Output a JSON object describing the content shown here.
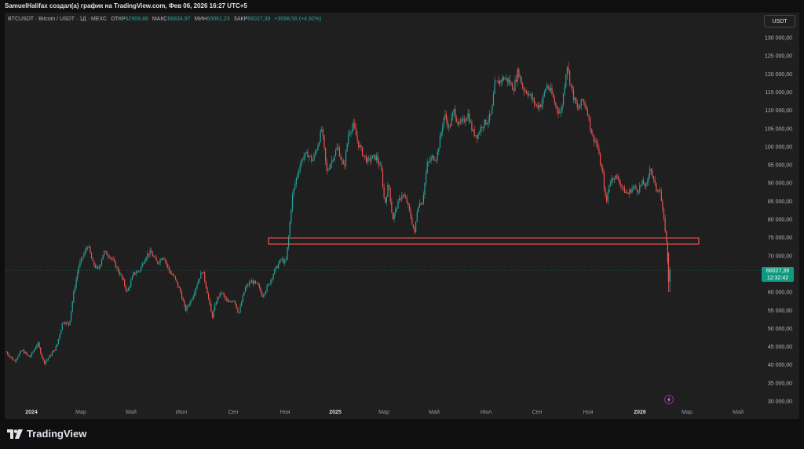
{
  "author_line": "SamuelHalifax создал(а) график на TradingView.com, Фев 06, 2026 16:27 UTC+5",
  "legend": {
    "symbol": "BTCUSDT · Bitcoin / USDT · 1Д · MEXC",
    "open_label": "ОТКР",
    "open_value": "62909,88",
    "high_label": "МАКС",
    "high_value": "66834,97",
    "low_label": "МИН",
    "low_value": "60061,23",
    "close_label": "ЗАКР",
    "close_value": "66027,39",
    "change": "+3098,56 (+4,92%)"
  },
  "currency_button": "USDT",
  "price_tag": {
    "price": "66027,39",
    "countdown": "12:32:42"
  },
  "brand": "TradingView",
  "colors": {
    "up": "#26a69a",
    "down": "#ef5350",
    "zone": "#ef5350",
    "tag": "#0d9a80"
  },
  "chart_data": {
    "type": "candlestick",
    "y_ticks": [
      "130 000,00",
      "125 000,00",
      "120 000,00",
      "115 000,00",
      "110 000,00",
      "105 000,00",
      "100 000,00",
      "95 000,00",
      "90 000,00",
      "85 000,00",
      "80 000,00",
      "75 000,00",
      "70 000,00",
      "65 000,00",
      "60 000,00",
      "55 000,00",
      "50 000,00",
      "45 000,00",
      "40 000,00",
      "35 000,00",
      "30 000,00"
    ],
    "x_ticks": [
      "2024",
      "Мар",
      "Май",
      "Июл",
      "Сен",
      "Ноя",
      "2025",
      "Мар",
      "Май",
      "Июл",
      "Сен",
      "Ноя",
      "2026",
      "Мар",
      "Май"
    ],
    "ylim": [
      28000,
      133000
    ],
    "price_path": [
      [
        0,
        39000
      ],
      [
        8,
        43500
      ],
      [
        18,
        41000
      ],
      [
        28,
        44000
      ],
      [
        38,
        42000
      ],
      [
        48,
        46000
      ],
      [
        56,
        40500
      ],
      [
        64,
        42500
      ],
      [
        72,
        45000
      ],
      [
        80,
        52000
      ],
      [
        88,
        51000
      ],
      [
        94,
        60000
      ],
      [
        100,
        67000
      ],
      [
        108,
        71000
      ],
      [
        112,
        73000
      ],
      [
        118,
        68000
      ],
      [
        125,
        66000
      ],
      [
        132,
        71000
      ],
      [
        140,
        70000
      ],
      [
        148,
        67000
      ],
      [
        155,
        64000
      ],
      [
        162,
        60000
      ],
      [
        170,
        65000
      ],
      [
        178,
        66000
      ],
      [
        186,
        70000
      ],
      [
        192,
        71000
      ],
      [
        200,
        68000
      ],
      [
        208,
        70000
      ],
      [
        215,
        66000
      ],
      [
        222,
        64000
      ],
      [
        230,
        60000
      ],
      [
        236,
        55000
      ],
      [
        244,
        58000
      ],
      [
        252,
        63000
      ],
      [
        258,
        66000
      ],
      [
        264,
        60000
      ],
      [
        270,
        53000
      ],
      [
        276,
        58000
      ],
      [
        282,
        60000
      ],
      [
        290,
        57000
      ],
      [
        298,
        58000
      ],
      [
        304,
        54000
      ],
      [
        312,
        61000
      ],
      [
        320,
        63000
      ],
      [
        328,
        62000
      ],
      [
        334,
        59000
      ],
      [
        342,
        62000
      ],
      [
        350,
        66000
      ],
      [
        358,
        69000
      ],
      [
        364,
        68000
      ],
      [
        368,
        76000
      ],
      [
        372,
        86000
      ],
      [
        378,
        92000
      ],
      [
        385,
        97000
      ],
      [
        392,
        98000
      ],
      [
        398,
        96000
      ],
      [
        404,
        100000
      ],
      [
        410,
        105000
      ],
      [
        416,
        93000
      ],
      [
        422,
        96000
      ],
      [
        430,
        100000
      ],
      [
        438,
        94000
      ],
      [
        444,
        104000
      ],
      [
        450,
        106000
      ],
      [
        456,
        101000
      ],
      [
        462,
        98000
      ],
      [
        468,
        96000
      ],
      [
        474,
        97000
      ],
      [
        480,
        97000
      ],
      [
        486,
        93000
      ],
      [
        490,
        84000
      ],
      [
        495,
        90000
      ],
      [
        500,
        80000
      ],
      [
        506,
        84000
      ],
      [
        512,
        87000
      ],
      [
        518,
        85000
      ],
      [
        524,
        80000
      ],
      [
        528,
        76000
      ],
      [
        532,
        84000
      ],
      [
        538,
        85000
      ],
      [
        544,
        95000
      ],
      [
        550,
        97000
      ],
      [
        556,
        97000
      ],
      [
        562,
        104000
      ],
      [
        566,
        109000
      ],
      [
        572,
        105000
      ],
      [
        578,
        110000
      ],
      [
        584,
        106000
      ],
      [
        590,
        107000
      ],
      [
        596,
        109000
      ],
      [
        602,
        104000
      ],
      [
        608,
        103000
      ],
      [
        614,
        106000
      ],
      [
        620,
        107000
      ],
      [
        626,
        109000
      ],
      [
        630,
        117000
      ],
      [
        636,
        118000
      ],
      [
        642,
        119000
      ],
      [
        648,
        118000
      ],
      [
        654,
        116000
      ],
      [
        660,
        121000
      ],
      [
        666,
        116000
      ],
      [
        672,
        115000
      ],
      [
        678,
        113000
      ],
      [
        684,
        111000
      ],
      [
        690,
        112000
      ],
      [
        696,
        117000
      ],
      [
        702,
        115000
      ],
      [
        708,
        111000
      ],
      [
        714,
        109000
      ],
      [
        718,
        115000
      ],
      [
        722,
        123000
      ],
      [
        726,
        118000
      ],
      [
        730,
        114000
      ],
      [
        736,
        110000
      ],
      [
        742,
        113000
      ],
      [
        748,
        110000
      ],
      [
        754,
        103000
      ],
      [
        760,
        101000
      ],
      [
        764,
        96000
      ],
      [
        768,
        92000
      ],
      [
        772,
        84000
      ],
      [
        776,
        90000
      ],
      [
        782,
        92000
      ],
      [
        788,
        91000
      ],
      [
        794,
        88000
      ],
      [
        800,
        87000
      ],
      [
        806,
        89000
      ],
      [
        812,
        88000
      ],
      [
        818,
        90000
      ],
      [
        824,
        89000
      ],
      [
        828,
        95000
      ],
      [
        832,
        91000
      ],
      [
        836,
        88000
      ],
      [
        840,
        89000
      ],
      [
        844,
        82000
      ],
      [
        848,
        76000
      ],
      [
        850,
        70000
      ],
      [
        852,
        62909
      ],
      [
        853,
        66027
      ]
    ],
    "annotations": [
      {
        "type": "zone",
        "y1": 73200,
        "y2": 74900
      }
    ]
  }
}
